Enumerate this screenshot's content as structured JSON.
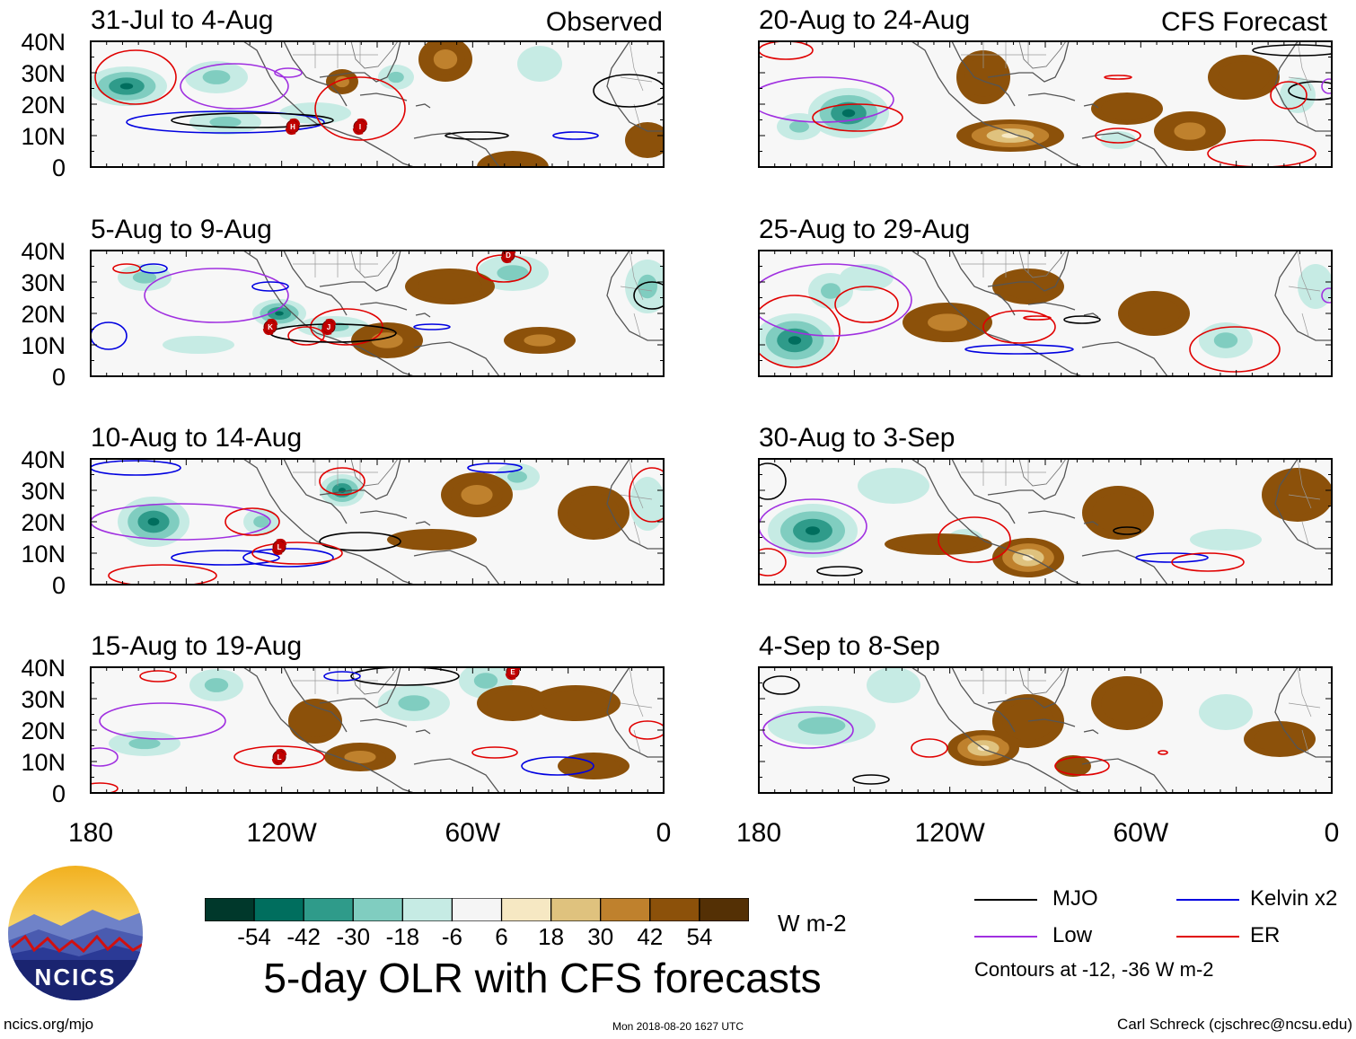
{
  "figure": {
    "title": "5-day OLR with CFS forecasts",
    "source_url": "ncics.org/mjo",
    "timestamp": "Mon 2018-08-20 1627 UTC",
    "author": "Carl Schreck (cjschrec@ncsu.edu)",
    "logo_text": "NCICS"
  },
  "column_labels": {
    "left": "Observed",
    "right": "CFS Forecast"
  },
  "axes": {
    "lat_ticks": [
      "40N",
      "30N",
      "20N",
      "10N",
      "0"
    ],
    "lon_ticks": [
      "180",
      "120W",
      "60W",
      "0"
    ]
  },
  "panels": [
    {
      "id": "p1",
      "title": "31-Jul to 4-Aug",
      "kind": "observed",
      "storms": [
        "H",
        "I"
      ]
    },
    {
      "id": "p2",
      "title": "5-Aug to 9-Aug",
      "kind": "observed",
      "storms": [
        "D",
        "K",
        "J"
      ]
    },
    {
      "id": "p3",
      "title": "10-Aug to 14-Aug",
      "kind": "observed",
      "storms": [
        "L"
      ]
    },
    {
      "id": "p4",
      "title": "15-Aug to 19-Aug",
      "kind": "observed",
      "storms": [
        "E",
        "L"
      ]
    },
    {
      "id": "p5",
      "title": "20-Aug to 24-Aug",
      "kind": "forecast",
      "storms": []
    },
    {
      "id": "p6",
      "title": "25-Aug to 29-Aug",
      "kind": "forecast",
      "storms": []
    },
    {
      "id": "p7",
      "title": "30-Aug to 3-Sep",
      "kind": "forecast",
      "storms": []
    },
    {
      "id": "p8",
      "title": "4-Sep to 8-Sep",
      "kind": "forecast",
      "storms": []
    }
  ],
  "colorbar": {
    "unit": "W m-2",
    "tick_labels": [
      "-54",
      "-42",
      "-30",
      "-18",
      "-6",
      "6",
      "18",
      "30",
      "42",
      "54"
    ],
    "colors": [
      "#00382b",
      "#006e5e",
      "#2f9b8a",
      "#80cdc0",
      "#c6ebe4",
      "#f5f5f5",
      "#f6e8c3",
      "#dfc27e",
      "#bf812d",
      "#8c510a",
      "#543005"
    ]
  },
  "legend": {
    "items": [
      {
        "label": "MJO",
        "color": "#000000"
      },
      {
        "label": "Kelvin x2",
        "color": "#0000e0"
      },
      {
        "label": "Low",
        "color": "#a030e0"
      },
      {
        "label": "ER",
        "color": "#e00000"
      }
    ],
    "note": "Contours at -12, -36 W m-2"
  }
}
